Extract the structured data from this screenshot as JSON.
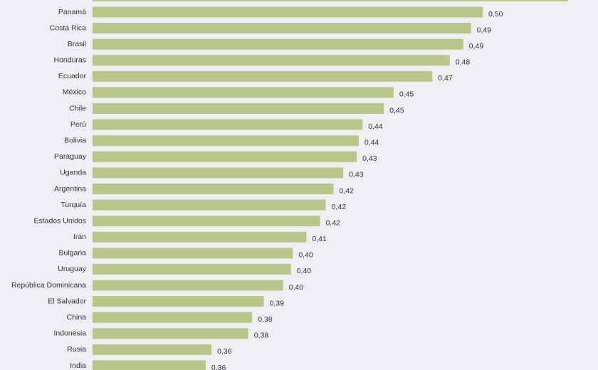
{
  "chart_data": {
    "type": "barh",
    "categories": [
      null,
      "Panamá",
      "Costa Rica",
      "Brasil",
      "Honduras",
      "Ecuador",
      "México",
      "Chile",
      "Perú",
      "Bolivia",
      "Paraguay",
      "Uganda",
      "Argentina",
      "Turquía",
      "Estados Unidos",
      "Irán",
      "Bulgaria",
      "Uruguay",
      "República Dominicana",
      "El Salvador",
      "China",
      "Indonesia",
      "Rusia",
      "India"
    ],
    "values": [
      0.544,
      0.5,
      0.494,
      0.49,
      0.483,
      0.474,
      0.454,
      0.449,
      0.438,
      0.436,
      0.435,
      0.428,
      0.423,
      0.419,
      0.416,
      0.409,
      0.402,
      0.401,
      0.397,
      0.387,
      0.381,
      0.379,
      0.36,
      0.357
    ],
    "value_labels": [
      null,
      "0,50",
      "0,49",
      "0,49",
      "0,48",
      "0,47",
      "0,45",
      "0,45",
      "0,44",
      "0,44",
      "0,43",
      "0,43",
      "0,42",
      "0,42",
      "0,42",
      "0,41",
      "0,40",
      "0,40",
      "0,40",
      "0,39",
      "0,38",
      "0,38",
      "0,36",
      "0,36"
    ],
    "color": "#b9c68a",
    "xlim": [
      0.2986,
      0.55
    ]
  }
}
